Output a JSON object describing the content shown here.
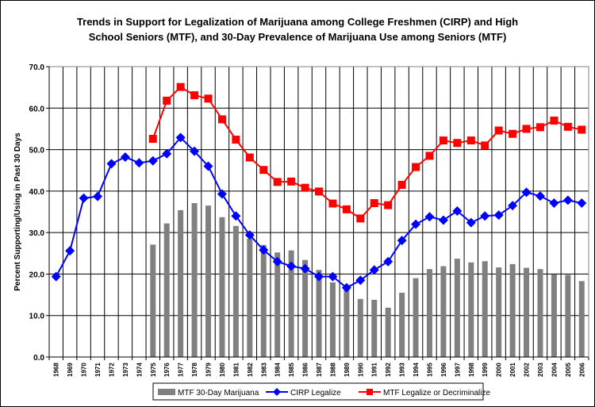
{
  "chart_data": {
    "type": "bar+line",
    "title_lines": [
      "Trends in Support for Legalization of Marijuana among College Freshmen (CIRP) and High",
      "School Seniors (MTF), and 30-Day Prevalence of Marijuana Use among Seniors (MTF)"
    ],
    "ylabel": "Percent Supporting/Using in Past 30 Days",
    "xlabel": "",
    "ylim": [
      0,
      70
    ],
    "yticks": [
      "0.0",
      "10.0",
      "20.0",
      "30.0",
      "40.0",
      "50.0",
      "60.0",
      "70.0"
    ],
    "grid": true,
    "legend_position": "bottom",
    "categories": [
      "1968",
      "1969",
      "1970",
      "1971",
      "1972",
      "1973",
      "1974",
      "1975",
      "1976",
      "1977",
      "1978",
      "1979",
      "1980",
      "1981",
      "1982",
      "1983",
      "1984",
      "1985",
      "1986",
      "1987",
      "1988",
      "1989",
      "1990",
      "1991",
      "1992",
      "1993",
      "1994",
      "1995",
      "1996",
      "1997",
      "1998",
      "1999",
      "2000",
      "2001",
      "2002",
      "2003",
      "2004",
      "2005",
      "2006"
    ],
    "series": [
      {
        "name": "MTF 30-Day Marijuana",
        "kind": "bar",
        "color": "#808080",
        "values": [
          null,
          null,
          null,
          null,
          null,
          null,
          null,
          27.1,
          32.2,
          35.4,
          37.1,
          36.5,
          33.7,
          31.6,
          28.5,
          27.0,
          25.2,
          25.7,
          23.4,
          21.0,
          18.0,
          16.7,
          14.0,
          13.8,
          11.9,
          15.5,
          19.0,
          21.2,
          21.9,
          23.7,
          22.8,
          23.1,
          21.6,
          22.4,
          21.5,
          21.2,
          19.9,
          19.8,
          18.3
        ]
      },
      {
        "name": "CIRP Legalize",
        "kind": "line",
        "marker": "diamond",
        "color": "#0000FF",
        "values": [
          19.4,
          25.6,
          38.3,
          38.7,
          46.6,
          48.2,
          46.8,
          47.3,
          49.0,
          52.9,
          49.6,
          46.0,
          39.3,
          34.0,
          29.4,
          25.8,
          23.0,
          21.9,
          21.3,
          19.4,
          19.4,
          16.7,
          18.5,
          21.0,
          23.0,
          28.1,
          32.0,
          33.8,
          33.0,
          35.2,
          32.4,
          34.0,
          34.2,
          36.5,
          39.7,
          38.8,
          37.1,
          37.8,
          37.1
        ]
      },
      {
        "name": "MTF Legalize or Decriminalize",
        "kind": "line",
        "marker": "square",
        "color": "#FF0000",
        "values": [
          null,
          null,
          null,
          null,
          null,
          null,
          null,
          52.6,
          61.8,
          65.1,
          63.1,
          62.3,
          57.3,
          52.4,
          48.1,
          45.1,
          42.2,
          42.3,
          40.8,
          39.9,
          37.0,
          35.6,
          33.4,
          37.1,
          36.6,
          41.5,
          45.8,
          48.5,
          52.2,
          51.6,
          52.2,
          51.0,
          54.6,
          53.8,
          55.0,
          55.4,
          57.0,
          55.5,
          54.8
        ]
      }
    ]
  }
}
